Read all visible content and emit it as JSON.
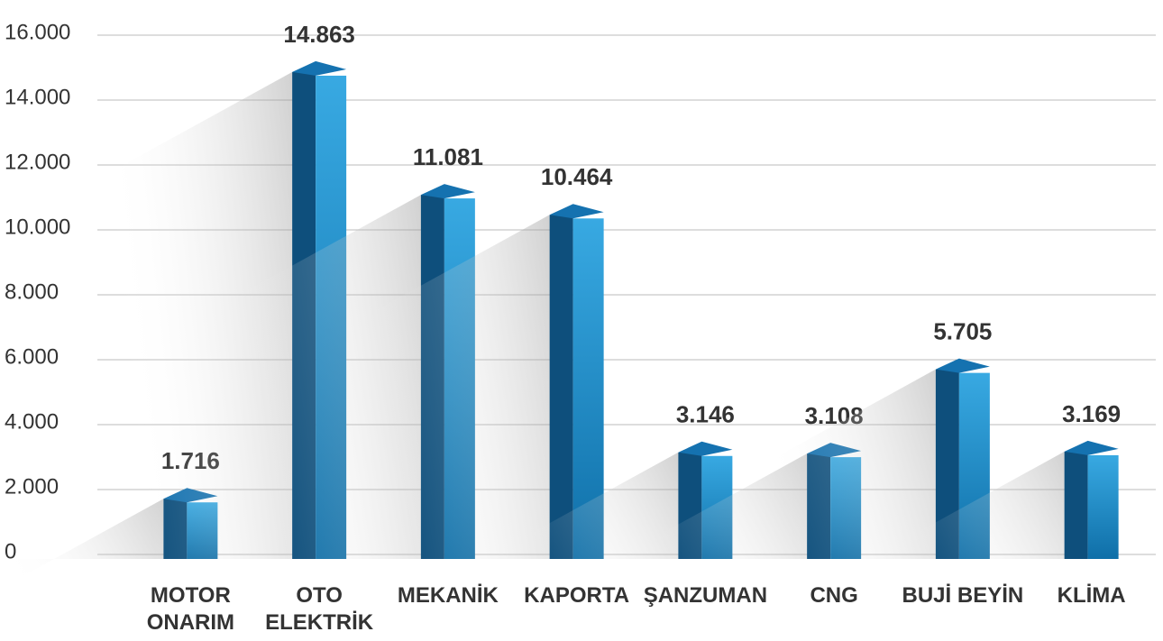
{
  "chart_data": {
    "type": "bar",
    "categories": [
      "MOTOR ONARIM",
      "OTO ELEKTRİK",
      "MEKANİK",
      "KAPORTA",
      "ŞANZUMAN",
      "CNG",
      "BUJİ BEYİN",
      "KLİMA"
    ],
    "values": [
      1716,
      14863,
      11081,
      10464,
      3146,
      3108,
      5705,
      3169
    ],
    "value_labels": [
      "1.716",
      "14.863",
      "11.081",
      "10.464",
      "3.146",
      "3.108",
      "5.705",
      "3.169"
    ],
    "color": "#1a7fc1",
    "ylim": [
      0,
      16000
    ],
    "yticks": [
      0,
      {
        "value": 2000,
        "label": "2.000"
      },
      {
        "value": 4000,
        "label": "4.000"
      },
      {
        "value": 6000,
        "label": "6.000"
      },
      {
        "value": 8000,
        "label": "8.000"
      },
      {
        "value": 10000,
        "label": "10.000"
      },
      {
        "value": 12000,
        "label": "12.000"
      },
      {
        "value": 14000,
        "label": "14.000"
      },
      {
        "value": 16000,
        "label": "16.000"
      }
    ],
    "grid": true
  }
}
